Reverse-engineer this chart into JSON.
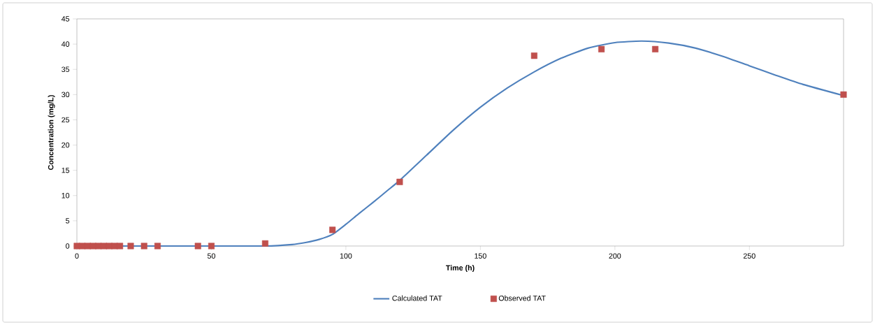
{
  "chart_data": {
    "type": "line",
    "xlabel": "Time (h)",
    "ylabel": "Concentration (mg/L)",
    "xlim": [
      0,
      285
    ],
    "ylim": [
      0,
      45
    ],
    "xticks": [
      0,
      50,
      100,
      150,
      200,
      250
    ],
    "yticks": [
      0,
      5,
      10,
      15,
      20,
      25,
      30,
      35,
      40,
      45
    ],
    "grid": false,
    "legend": "bottom",
    "series": [
      {
        "name": "Calculated TAT",
        "color": "#4f81bd",
        "line_style": "solid",
        "x": [
          0,
          50,
          70,
          80,
          85,
          90,
          95,
          100,
          105,
          110,
          115,
          120,
          130,
          140,
          150,
          160,
          170,
          180,
          190,
          200,
          210,
          220,
          230,
          240,
          250,
          260,
          270,
          285
        ],
        "values": [
          0,
          0,
          0,
          0.3,
          0.7,
          1.3,
          2.3,
          4.3,
          6.5,
          8.6,
          10.8,
          13.0,
          18.0,
          23.0,
          27.5,
          31.3,
          34.5,
          37.2,
          39.2,
          40.3,
          40.6,
          40.2,
          39.2,
          37.6,
          35.7,
          33.8,
          32.0,
          29.8
        ]
      },
      {
        "name": "Observed TAT",
        "type": "scatter",
        "color": "#c0504d",
        "marker": "square",
        "x": [
          0,
          2,
          4,
          6,
          8,
          10,
          12,
          14,
          16,
          20,
          25,
          30,
          45,
          50,
          70,
          95,
          120,
          170,
          195,
          215,
          285
        ],
        "values": [
          0,
          0,
          0,
          0,
          0,
          0,
          0,
          0,
          0,
          0,
          0,
          0,
          0,
          0,
          0.5,
          3.2,
          12.7,
          37.7,
          39,
          39,
          30
        ]
      }
    ]
  }
}
